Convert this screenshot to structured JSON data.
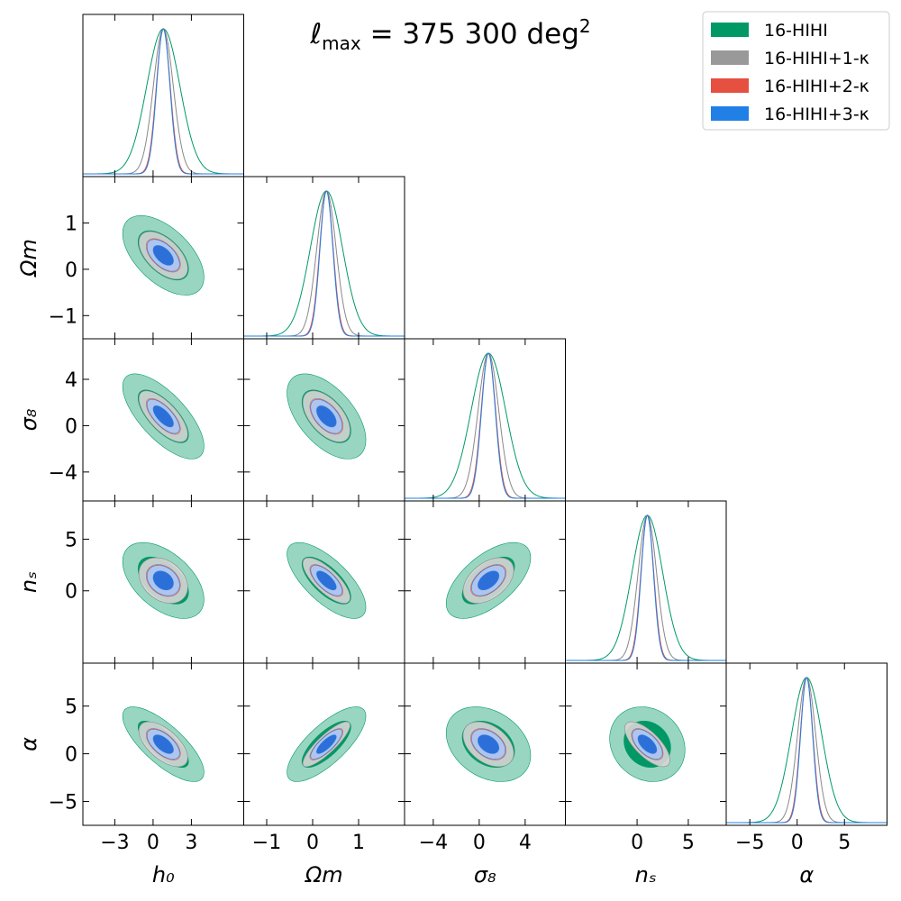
{
  "chart_data": {
    "type": "corner",
    "title": "ℓmax = 375 300 deg²",
    "params": [
      {
        "name": "h0",
        "label": "h₀",
        "center": 0.8,
        "range": [
          -5.5,
          7.1
        ],
        "ticks": [
          -3,
          0,
          3
        ],
        "sigma": 1.3
      },
      {
        "name": "Omega_m",
        "label": "Ωm",
        "center": 0.3,
        "range": [
          -1.5,
          2.0
        ],
        "ticks": [
          -1,
          0,
          1
        ],
        "sigma": 0.35
      },
      {
        "name": "sigma8",
        "label": "σ₈",
        "center": 0.8,
        "range": [
          -6.5,
          7.5
        ],
        "ticks": [
          -4,
          0,
          4
        ],
        "sigma": 1.5
      },
      {
        "name": "n_s",
        "label": "nₛ",
        "center": 1.0,
        "range": [
          -7.0,
          8.7
        ],
        "ticks": [
          0,
          5
        ],
        "sigma": 1.5
      },
      {
        "name": "alpha",
        "label": "α",
        "center": 1.0,
        "range": [
          -7.5,
          9.5
        ],
        "ticks": [
          -5,
          0,
          5
        ],
        "sigma": 1.6
      }
    ],
    "legend": {
      "placement": "top-right",
      "entries": [
        {
          "label": "16-HIHI",
          "color": "#009966"
        },
        {
          "label": "16-HIHI+1-κ",
          "color": "#999999"
        },
        {
          "label": "16-HIHI+2-κ",
          "color": "#e65040"
        },
        {
          "label": "16-HIHI+3-κ",
          "color": "#2080e6"
        }
      ]
    },
    "series": [
      {
        "name": "16-HIHI",
        "fill_inner": "#009966",
        "fill_outer": "#99d6c2",
        "line": "#009966",
        "width_scale": 1.0
      },
      {
        "name": "16-HIHI+1-κ",
        "fill_inner": "#999999",
        "fill_outer": "#d6d6d6",
        "line": "#888888",
        "width_scale": 0.6
      },
      {
        "name": "16-HIHI+2-κ",
        "fill_inner": "#e65040",
        "fill_outer": "#f5b0a8",
        "line": "#e65040",
        "width_scale": 0.42
      },
      {
        "name": "16-HIHI+3-κ",
        "fill_inner": "#1f66d6",
        "fill_outer": "#a8c8f5",
        "line": "#2080e6",
        "width_scale": 0.4
      }
    ],
    "correlations": {
      "1-0": {
        "rho": [
          -0.55,
          -0.55,
          -0.55,
          -0.55
        ]
      },
      "2-0": {
        "rho": [
          -0.7,
          -0.7,
          -0.7,
          -0.7
        ]
      },
      "2-1": {
        "rho": [
          -0.55,
          -0.55,
          -0.55,
          -0.55
        ]
      },
      "3-0": {
        "rho": [
          -0.5,
          -0.3,
          -0.3,
          -0.3
        ]
      },
      "3-1": {
        "rho": [
          -0.7,
          -0.75,
          -0.7,
          -0.7
        ]
      },
      "3-2": {
        "rho": [
          0.6,
          0.45,
          0.5,
          0.5
        ]
      },
      "4-0": {
        "rho": [
          -0.75,
          -0.6,
          -0.6,
          -0.6
        ]
      },
      "4-1": {
        "rho": [
          0.75,
          0.85,
          0.8,
          0.8
        ]
      },
      "4-2": {
        "rho": [
          -0.3,
          -0.4,
          -0.4,
          -0.4
        ]
      },
      "4-3": {
        "rho": [
          -0.15,
          -0.7,
          -0.6,
          -0.6
        ]
      }
    },
    "grid": false
  }
}
